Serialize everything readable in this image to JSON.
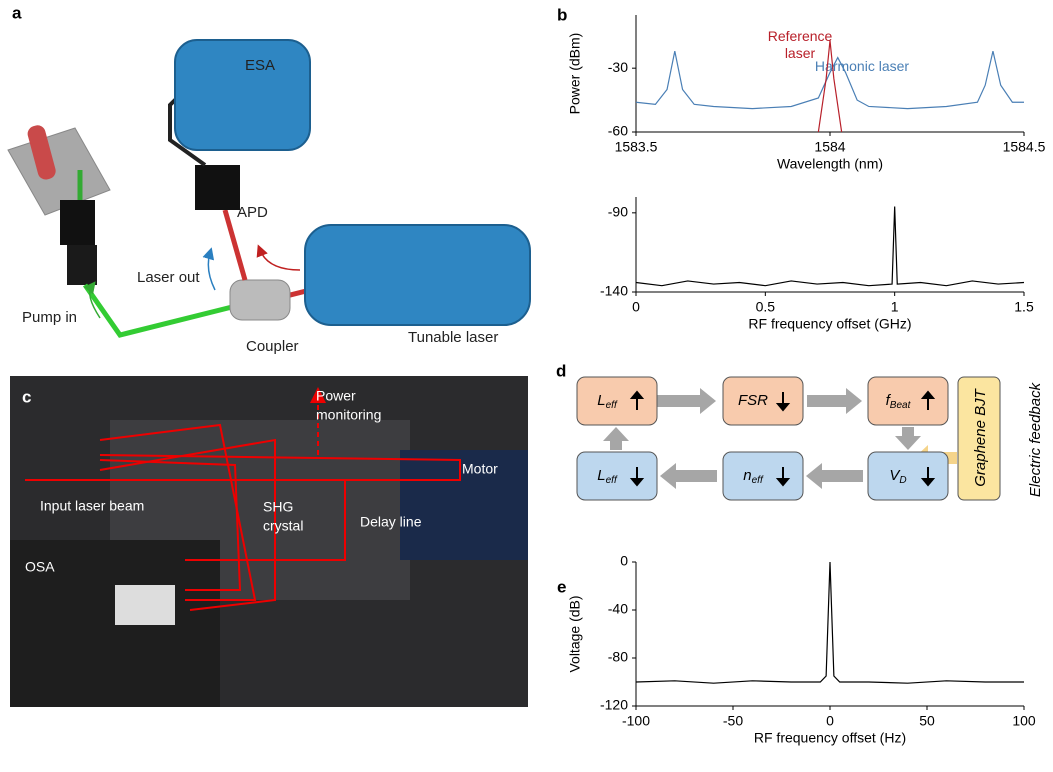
{
  "panel_labels": [
    "a",
    "b",
    "c",
    "d",
    "e"
  ],
  "diagram_a": {
    "labels": [
      "ESA",
      "APD",
      "Laser out",
      "Pump in",
      "Coupler",
      "Tunable laser"
    ]
  },
  "photo_c": {
    "labels": [
      "Power",
      "monitoring",
      "Motor",
      "Input laser beam",
      "SHG",
      "crystal",
      "Delay line",
      "OSA"
    ]
  },
  "diagram_d": {
    "nodes": [
      {
        "text": "L",
        "sub": "eff"
      },
      {
        "text": "FSR"
      },
      {
        "text": "f",
        "sub": "Beat"
      },
      {
        "text": "L",
        "sub": "eff"
      },
      {
        "text": "n",
        "sub": "eff"
      },
      {
        "text": "V",
        "sub": "D"
      }
    ],
    "feedback_box": "Graphene BJT",
    "side_label": "Electric feedback"
  },
  "chart_data": [
    {
      "type": "line",
      "xlabel": "Wavelength (nm)",
      "ylabel": "Power (dBm)",
      "xlim": [
        1583.5,
        1584.5
      ],
      "xticks": [
        1583.5,
        1584,
        1584.5
      ],
      "ylim": [
        -60,
        -5
      ],
      "yticks": [
        -60,
        -30
      ],
      "series": [
        {
          "name": "Harmonic laser",
          "color": "#4a7fb5",
          "x": [
            1583.5,
            1583.55,
            1583.58,
            1583.6,
            1583.62,
            1583.65,
            1583.7,
            1583.8,
            1583.9,
            1583.97,
            1584.0,
            1584.02,
            1584.04,
            1584.07,
            1584.1,
            1584.2,
            1584.3,
            1584.38,
            1584.4,
            1584.42,
            1584.44,
            1584.47,
            1584.5
          ],
          "values": [
            -46,
            -47,
            -40,
            -22,
            -40,
            -47,
            -48,
            -49,
            -48,
            -44,
            -32,
            -25,
            -32,
            -45,
            -48,
            -49,
            -48,
            -46,
            -38,
            -22,
            -38,
            -46,
            -46
          ]
        },
        {
          "name": "Reference laser",
          "color": "#b8202a",
          "x": [
            1583.97,
            1583.99,
            1584.0,
            1584.01,
            1584.03
          ],
          "values": [
            -60,
            -35,
            -17,
            -35,
            -60
          ]
        }
      ]
    },
    {
      "type": "line",
      "xlabel": "RF frequency offset (GHz)",
      "xlim": [
        0,
        1.5
      ],
      "xticks": [
        0,
        0.5,
        1,
        1.5
      ],
      "ylim": [
        -140,
        -80
      ],
      "yticks": [
        -140,
        -90
      ],
      "series": [
        {
          "color": "#000000",
          "x": [
            0,
            0.1,
            0.2,
            0.3,
            0.4,
            0.5,
            0.6,
            0.7,
            0.8,
            0.9,
            0.99,
            1.0,
            1.01,
            1.1,
            1.2,
            1.3,
            1.4,
            1.5
          ],
          "values": [
            -134,
            -136,
            -133,
            -135,
            -134,
            -136,
            -133,
            -135,
            -134,
            -136,
            -135,
            -86,
            -135,
            -134,
            -136,
            -133,
            -135,
            -134
          ]
        }
      ]
    },
    {
      "type": "line",
      "xlabel": "RF frequency offset (Hz)",
      "ylabel": "Voltage (dB)",
      "xlim": [
        -100,
        100
      ],
      "xticks": [
        -100,
        -50,
        0,
        50,
        100
      ],
      "ylim": [
        -120,
        0
      ],
      "yticks": [
        -120,
        -80,
        -40,
        0
      ],
      "series": [
        {
          "color": "#000000",
          "x": [
            -100,
            -80,
            -60,
            -40,
            -20,
            -5,
            -2,
            0,
            2,
            5,
            20,
            40,
            60,
            80,
            100
          ],
          "values": [
            -100,
            -99,
            -101,
            -99,
            -100,
            -100,
            -95,
            0,
            -95,
            -100,
            -100,
            -101,
            -99,
            -100,
            -100
          ]
        }
      ]
    }
  ]
}
